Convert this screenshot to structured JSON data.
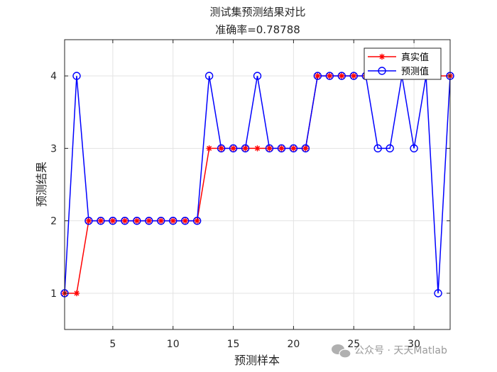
{
  "chart_data": {
    "type": "line",
    "title": "测试集预测结果对比",
    "subtitle": "准确率=0.78788",
    "xlabel": "预测样本",
    "ylabel": "预测结果",
    "xlim": [
      1,
      33
    ],
    "ylim": [
      0.5,
      4.5
    ],
    "xticks": [
      5,
      10,
      15,
      20,
      25,
      30
    ],
    "yticks": [
      1,
      2,
      3,
      4
    ],
    "grid": true,
    "legend_position": "top-right",
    "x": [
      1,
      2,
      3,
      4,
      5,
      6,
      7,
      8,
      9,
      10,
      11,
      12,
      13,
      14,
      15,
      16,
      17,
      18,
      19,
      20,
      21,
      22,
      23,
      24,
      25,
      26,
      27,
      28,
      29,
      30,
      31,
      32,
      33
    ],
    "series": [
      {
        "name": "真实值",
        "color": "#ff0000",
        "marker": "asterisk",
        "values": [
          1,
          1,
          2,
          2,
          2,
          2,
          2,
          2,
          2,
          2,
          2,
          2,
          3,
          3,
          3,
          3,
          3,
          3,
          3,
          3,
          3,
          4,
          4,
          4,
          4,
          4,
          4,
          4,
          4,
          4,
          4,
          4,
          4
        ]
      },
      {
        "name": "预测值",
        "color": "#0000ff",
        "marker": "circle",
        "values": [
          1,
          4,
          2,
          2,
          2,
          2,
          2,
          2,
          2,
          2,
          2,
          2,
          4,
          3,
          3,
          3,
          4,
          3,
          3,
          3,
          3,
          4,
          4,
          4,
          4,
          4,
          3,
          3,
          4,
          3,
          4,
          1,
          4
        ]
      }
    ]
  },
  "watermark": {
    "text": "公众号 · 天天Matlab",
    "icon": "wechat-icon"
  }
}
